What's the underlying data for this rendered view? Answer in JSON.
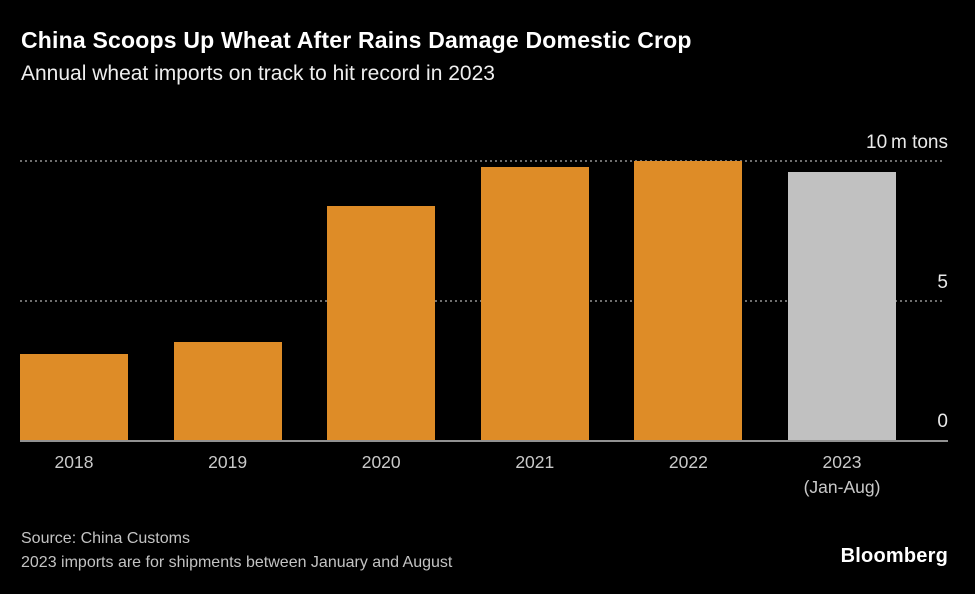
{
  "header": {
    "title": "China Scoops Up Wheat After Rains Damage Domestic Crop",
    "subtitle": "Annual wheat imports on track to hit record in 2023"
  },
  "chart_data": {
    "type": "bar",
    "title": "China Scoops Up Wheat After Rains Damage Domestic Crop",
    "subtitle": "Annual wheat imports on track to hit record in 2023",
    "xlabel": "",
    "ylabel": "m tons",
    "categories": [
      "2018",
      "2019",
      "2020",
      "2021",
      "2022",
      "2023"
    ],
    "category_sublabels": [
      "",
      "",
      "",
      "",
      "",
      "(Jan-Aug)"
    ],
    "values": [
      3.1,
      3.5,
      8.4,
      9.8,
      10.0,
      9.6
    ],
    "bar_colors": [
      "#de8c27",
      "#de8c27",
      "#de8c27",
      "#de8c27",
      "#de8c27",
      "#c1c1c1"
    ],
    "ylim": [
      0,
      10
    ],
    "yticks": [
      {
        "value": 10,
        "label": "10 m tons"
      },
      {
        "value": 5,
        "label": "5"
      },
      {
        "value": 0,
        "label": "0"
      }
    ],
    "grid": "horizontal-dotted",
    "legend": "none"
  },
  "footer": {
    "source": "Source: China Customs",
    "note": "2023 imports are for shipments between January and August",
    "brand": "Bloomberg"
  },
  "colors": {
    "background": "#000000",
    "bar_orange": "#de8c27",
    "bar_gray": "#c1c1c1",
    "grid_dots": "#6f6f6f",
    "axis_line": "#919191",
    "title_text": "#ffffff",
    "axis_text": "#c9c9c9"
  }
}
